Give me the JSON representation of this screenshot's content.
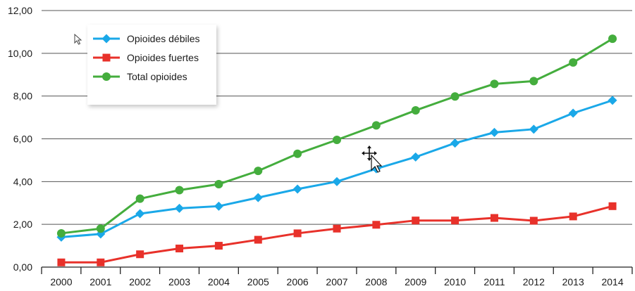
{
  "chart_data": {
    "type": "line",
    "title": "",
    "xlabel": "",
    "ylabel": "",
    "categories": [
      "2000",
      "2001",
      "2002",
      "2003",
      "2004",
      "2005",
      "2006",
      "2007",
      "2008",
      "2009",
      "2010",
      "2011",
      "2012",
      "2013",
      "2014"
    ],
    "ylim": [
      0,
      12
    ],
    "y_ticks": [
      0,
      2,
      4,
      6,
      8,
      10,
      12
    ],
    "y_tick_labels": [
      "0,00",
      "2,00",
      "4,00",
      "6,00",
      "8,00",
      "10,00",
      "12,00"
    ],
    "grid": "horizontal",
    "legend_position": "top-left",
    "series": [
      {
        "name": "Opioides débiles",
        "color": "#1aa8e8",
        "marker": "diamond",
        "values": [
          1.4,
          1.55,
          2.5,
          2.75,
          2.85,
          3.25,
          3.65,
          4.0,
          4.6,
          5.15,
          5.8,
          6.3,
          6.45,
          7.2,
          7.8
        ]
      },
      {
        "name": "Opioides fuertes",
        "color": "#e8312a",
        "marker": "square",
        "values": [
          0.22,
          0.22,
          0.6,
          0.87,
          1.0,
          1.28,
          1.58,
          1.8,
          1.98,
          2.18,
          2.18,
          2.3,
          2.17,
          2.37,
          2.85
        ]
      },
      {
        "name": "Total opioides",
        "color": "#44ad3d",
        "marker": "circle",
        "values": [
          1.58,
          1.8,
          3.2,
          3.6,
          3.88,
          4.5,
          5.3,
          5.95,
          6.63,
          7.33,
          7.98,
          8.57,
          8.7,
          9.57,
          10.68
        ]
      }
    ]
  }
}
